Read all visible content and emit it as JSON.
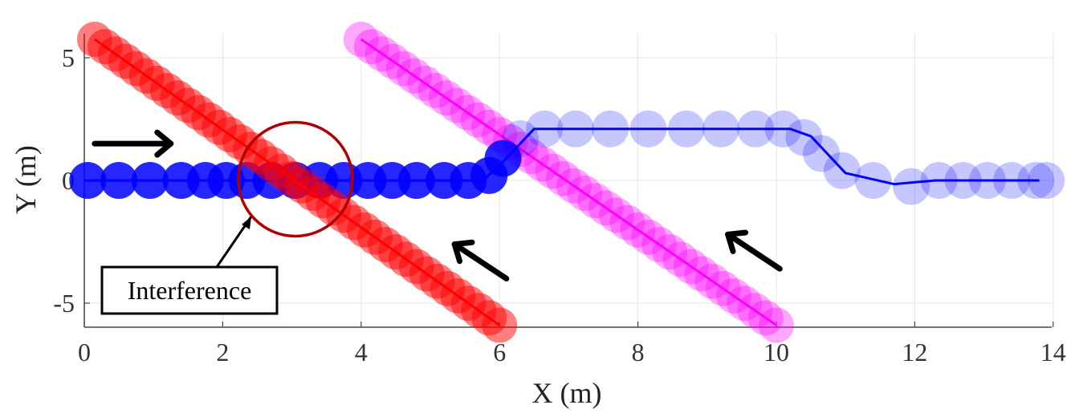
{
  "chart_data": {
    "type": "scatter",
    "title": "",
    "xlabel": "X (m)",
    "ylabel": "Y (m)",
    "xlim": [
      0,
      14
    ],
    "ylim": [
      -6,
      6
    ],
    "xticks": [
      0,
      2,
      4,
      6,
      8,
      10,
      12,
      14
    ],
    "yticks": [
      -5,
      0,
      5
    ],
    "xtick_labels": [
      "0",
      "2",
      "4",
      "6",
      "8",
      "10",
      "12",
      "14"
    ],
    "ytick_labels": [
      "-5",
      "0",
      "5"
    ],
    "grid": true,
    "series": [
      {
        "color": "#ff0000",
        "circle_radius": 0.7,
        "circle_opacity": 0.5,
        "path": [
          [
            0.15,
            5.75
          ],
          [
            6.0,
            -5.9
          ]
        ],
        "circle_count": 40
      },
      {
        "color": "#ff00ff",
        "circle_radius": 0.7,
        "circle_opacity": 0.35,
        "path": [
          [
            4.0,
            5.75
          ],
          [
            10.0,
            -5.9
          ]
        ],
        "circle_count": 40
      },
      {
        "color": "#0000ff",
        "circle_radius": 0.7,
        "circle_opacity": 0.2,
        "line_width": 3,
        "path": [
          [
            0.0,
            0.0
          ],
          [
            5.75,
            0.0
          ],
          [
            6.0,
            0.6
          ],
          [
            6.5,
            2.1
          ],
          [
            10.2,
            2.1
          ],
          [
            10.5,
            1.8
          ],
          [
            11.0,
            0.3
          ],
          [
            11.7,
            -0.15
          ],
          [
            12.3,
            0.0
          ],
          [
            13.8,
            0.0
          ]
        ],
        "circles": [
          [
            0.05,
            0.0
          ],
          [
            0.5,
            0.0
          ],
          [
            0.95,
            0.0
          ],
          [
            1.4,
            0.0
          ],
          [
            1.75,
            0.0
          ],
          [
            2.05,
            0.0
          ],
          [
            2.35,
            0.0
          ],
          [
            2.7,
            0.0
          ],
          [
            3.05,
            0.0
          ],
          [
            3.4,
            0.0
          ],
          [
            3.75,
            0.0
          ],
          [
            4.1,
            0.0
          ],
          [
            4.45,
            0.0
          ],
          [
            4.8,
            0.0
          ],
          [
            5.2,
            0.0
          ],
          [
            5.55,
            0.0
          ],
          [
            5.85,
            0.2
          ],
          [
            6.05,
            0.9
          ],
          [
            6.3,
            1.7
          ],
          [
            6.65,
            2.1
          ],
          [
            7.1,
            2.1
          ],
          [
            7.6,
            2.1
          ],
          [
            8.15,
            2.1
          ],
          [
            8.7,
            2.1
          ],
          [
            9.2,
            2.1
          ],
          [
            9.7,
            2.1
          ],
          [
            10.1,
            2.1
          ],
          [
            10.4,
            1.75
          ],
          [
            10.65,
            1.1
          ],
          [
            10.95,
            0.4
          ],
          [
            11.4,
            0.0
          ],
          [
            11.95,
            -0.25
          ],
          [
            12.35,
            0.0
          ],
          [
            12.7,
            0.0
          ],
          [
            13.05,
            0.0
          ],
          [
            13.4,
            0.0
          ],
          [
            13.75,
            0.0
          ],
          [
            13.9,
            0.0
          ]
        ],
        "heavy_until_x": 6.1
      }
    ],
    "arrows": [
      {
        "from": [
          0.15,
          1.5
        ],
        "to": [
          1.25,
          1.5
        ]
      },
      {
        "from": [
          6.1,
          -4.0
        ],
        "to": [
          5.35,
          -2.6
        ]
      },
      {
        "from": [
          10.05,
          -3.6
        ],
        "to": [
          9.3,
          -2.2
        ]
      },
      {
        "from": [
          2.45,
          -4.1
        ],
        "to": [
          2.45,
          -1.6
        ],
        "bend": [
          3.0,
          -1.6
        ]
      }
    ],
    "annotations": [
      {
        "text": "Interference",
        "type": "box",
        "anchor": [
          2.2,
          -4.45
        ]
      }
    ],
    "highlight_circle": {
      "center": [
        3.05,
        0.05
      ],
      "radius": 1.35,
      "color": "#b00000"
    }
  }
}
